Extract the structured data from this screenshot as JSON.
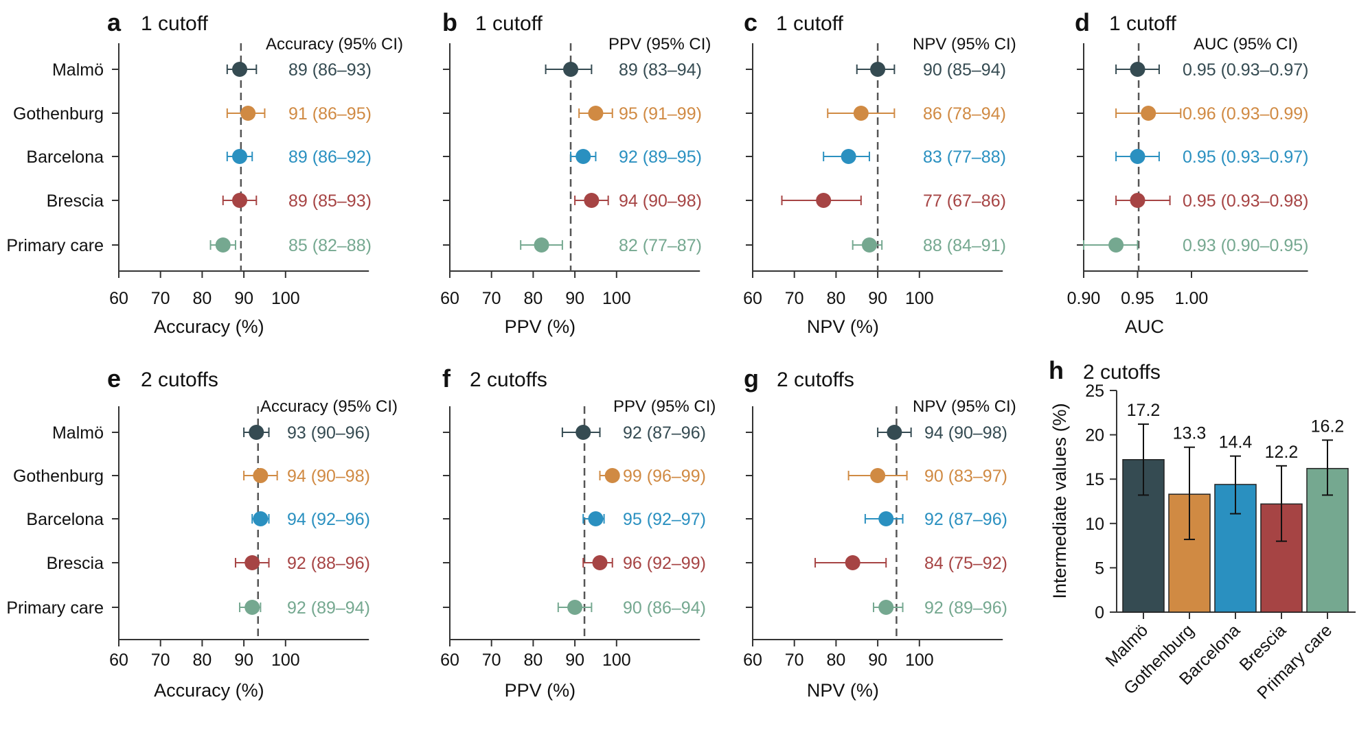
{
  "colors": [
    "#354b52",
    "#d08a43",
    "#2a90c0",
    "#a64444",
    "#75a890"
  ],
  "chart_data": [
    {
      "type": "scatter",
      "panel": "a",
      "title": "1 cutoff",
      "header": "Accuracy (95% CI)",
      "xlabel": "Accuracy (%)",
      "xlim": [
        60,
        120
      ],
      "ticks": [
        "60",
        "70",
        "80",
        "90",
        "100"
      ],
      "tick_values": [
        60,
        70,
        80,
        90,
        100
      ],
      "reference": 89.3,
      "categories": [
        "Malmö",
        "Gothenburg",
        "Barcelona",
        "Brescia",
        "Primary care"
      ],
      "rows": [
        {
          "value": 89,
          "lo": 86,
          "hi": 93,
          "text": "89 (86–93)"
        },
        {
          "value": 91,
          "lo": 86,
          "hi": 95,
          "text": "91 (86–95)"
        },
        {
          "value": 89,
          "lo": 86,
          "hi": 92,
          "text": "89 (86–92)"
        },
        {
          "value": 89,
          "lo": 85,
          "hi": 93,
          "text": "89 (85–93)"
        },
        {
          "value": 85,
          "lo": 82,
          "hi": 88,
          "text": "85 (82–88)"
        }
      ]
    },
    {
      "type": "scatter",
      "panel": "b",
      "title": "1 cutoff",
      "header": "PPV (95% CI)",
      "xlabel": "PPV (%)",
      "xlim": [
        60,
        120
      ],
      "ticks": [
        "60",
        "70",
        "80",
        "90",
        "100"
      ],
      "tick_values": [
        60,
        70,
        80,
        90,
        100
      ],
      "reference": 89,
      "rows": [
        {
          "value": 89,
          "lo": 83,
          "hi": 94,
          "text": "89 (83–94)"
        },
        {
          "value": 95,
          "lo": 91,
          "hi": 99,
          "text": "95 (91–99)"
        },
        {
          "value": 92,
          "lo": 89,
          "hi": 95,
          "text": "92 (89–95)"
        },
        {
          "value": 94,
          "lo": 90,
          "hi": 98,
          "text": "94 (90–98)"
        },
        {
          "value": 82,
          "lo": 77,
          "hi": 87,
          "text": "82 (77–87)"
        }
      ]
    },
    {
      "type": "scatter",
      "panel": "c",
      "title": "1 cutoff",
      "header": "NPV (95% CI)",
      "xlabel": "NPV (%)",
      "xlim": [
        60,
        120
      ],
      "ticks": [
        "60",
        "70",
        "80",
        "90",
        "100"
      ],
      "tick_values": [
        60,
        70,
        80,
        90,
        100
      ],
      "reference": 90,
      "rows": [
        {
          "value": 90,
          "lo": 85,
          "hi": 94,
          "text": "90 (85–94)"
        },
        {
          "value": 86,
          "lo": 78,
          "hi": 94,
          "text": "86 (78–94)"
        },
        {
          "value": 83,
          "lo": 77,
          "hi": 88,
          "text": "83 (77–88)"
        },
        {
          "value": 77,
          "lo": 67,
          "hi": 86,
          "text": "77 (67–86)"
        },
        {
          "value": 88,
          "lo": 84,
          "hi": 91,
          "text": "88 (84–91)"
        }
      ]
    },
    {
      "type": "scatter",
      "panel": "d",
      "title": "1 cutoff",
      "header": "AUC (95% CI)",
      "xlabel": "AUC",
      "xlim": [
        0.9,
        1.108
      ],
      "ticks": [
        "0.90",
        "0.95",
        "1.00"
      ],
      "tick_values": [
        0.9,
        0.95,
        1.0
      ],
      "reference": 0.951,
      "rows": [
        {
          "value": 0.95,
          "lo": 0.93,
          "hi": 0.97,
          "text": "0.95 (0.93–0.97)"
        },
        {
          "value": 0.96,
          "lo": 0.93,
          "hi": 0.99,
          "text": "0.96 (0.93–0.99)"
        },
        {
          "value": 0.95,
          "lo": 0.93,
          "hi": 0.97,
          "text": "0.95 (0.93–0.97)"
        },
        {
          "value": 0.95,
          "lo": 0.93,
          "hi": 0.98,
          "text": "0.95 (0.93–0.98)"
        },
        {
          "value": 0.93,
          "lo": 0.9,
          "hi": 0.95,
          "text": "0.93 (0.90–0.95)"
        }
      ]
    },
    {
      "type": "scatter",
      "panel": "e",
      "title": "2 cutoffs",
      "header": "Accuracy (95% CI)",
      "xlabel": "Accuracy (%)",
      "xlim": [
        60,
        120
      ],
      "ticks": [
        "60",
        "70",
        "80",
        "90",
        "100"
      ],
      "tick_values": [
        60,
        70,
        80,
        90,
        100
      ],
      "reference": 93.4,
      "categories": [
        "Malmö",
        "Gothenburg",
        "Barcelona",
        "Brescia",
        "Primary care"
      ],
      "rows": [
        {
          "value": 93,
          "lo": 90,
          "hi": 96,
          "text": "93 (90–96)"
        },
        {
          "value": 94,
          "lo": 90,
          "hi": 98,
          "text": "94 (90–98)"
        },
        {
          "value": 94,
          "lo": 92,
          "hi": 96,
          "text": "94 (92–96)"
        },
        {
          "value": 92,
          "lo": 88,
          "hi": 96,
          "text": "92 (88–96)"
        },
        {
          "value": 92,
          "lo": 89,
          "hi": 94,
          "text": "92 (89–94)"
        }
      ]
    },
    {
      "type": "scatter",
      "panel": "f",
      "title": "2 cutoffs",
      "header": "PPV (95% CI)",
      "xlabel": "PPV (%)",
      "xlim": [
        60,
        120
      ],
      "ticks": [
        "60",
        "70",
        "80",
        "90",
        "100"
      ],
      "tick_values": [
        60,
        70,
        80,
        90,
        100
      ],
      "reference": 92.3,
      "rows": [
        {
          "value": 92,
          "lo": 87,
          "hi": 96,
          "text": "92 (87–96)"
        },
        {
          "value": 99,
          "lo": 96,
          "hi": 99,
          "text": "99 (96–99)"
        },
        {
          "value": 95,
          "lo": 92,
          "hi": 97,
          "text": "95 (92–97)"
        },
        {
          "value": 96,
          "lo": 92,
          "hi": 99,
          "text": "96 (92–99)"
        },
        {
          "value": 90,
          "lo": 86,
          "hi": 94,
          "text": "90 (86–94)"
        }
      ]
    },
    {
      "type": "scatter",
      "panel": "g",
      "title": "2 cutoffs",
      "header": "NPV (95% CI)",
      "xlabel": "NPV (%)",
      "xlim": [
        60,
        120
      ],
      "ticks": [
        "60",
        "70",
        "80",
        "90",
        "100"
      ],
      "tick_values": [
        60,
        70,
        80,
        90,
        100
      ],
      "reference": 94.5,
      "rows": [
        {
          "value": 94,
          "lo": 90,
          "hi": 98,
          "text": "94 (90–98)"
        },
        {
          "value": 90,
          "lo": 83,
          "hi": 97,
          "text": "90 (83–97)"
        },
        {
          "value": 92,
          "lo": 87,
          "hi": 96,
          "text": "92 (87–96)"
        },
        {
          "value": 84,
          "lo": 75,
          "hi": 92,
          "text": "84 (75–92)"
        },
        {
          "value": 92,
          "lo": 89,
          "hi": 96,
          "text": "92 (89–96)"
        }
      ]
    },
    {
      "type": "bar",
      "panel": "h",
      "title": "2 cutoffs",
      "ylabel": "Intermediate values (%)",
      "ylim": [
        0,
        25
      ],
      "yticks": [
        "0",
        "5",
        "10",
        "15",
        "20",
        "25"
      ],
      "ytick_values": [
        0,
        5,
        10,
        15,
        20,
        25
      ],
      "categories": [
        "Malmö",
        "Gothenburg",
        "Barcelona",
        "Brescia",
        "Primary care"
      ],
      "values": [
        17.2,
        13.3,
        14.4,
        12.2,
        16.2
      ],
      "value_labels": [
        "17.2",
        "13.3",
        "14.4",
        "12.2",
        "16.2"
      ],
      "err_lo": [
        13.2,
        8.2,
        11.1,
        8.0,
        13.2
      ],
      "err_hi": [
        21.2,
        18.6,
        17.6,
        16.5,
        19.4
      ]
    }
  ]
}
